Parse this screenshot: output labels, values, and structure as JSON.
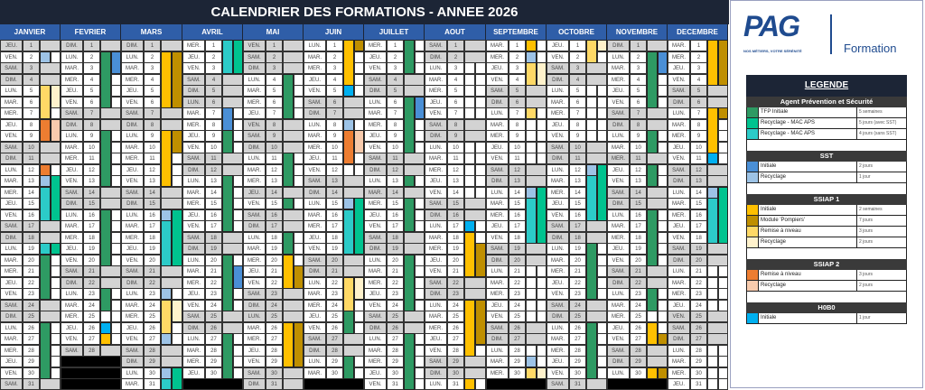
{
  "title": "CALENDRIER DES FORMATIONS - ANNEE 2026",
  "weekday_labels": [
    "LUN.",
    "MAR.",
    "MER.",
    "JEU.",
    "VEN.",
    "SAM.",
    "DIM."
  ],
  "months": [
    {
      "name": "JANVIER",
      "start": 3,
      "days": 31,
      "holidays": [
        1
      ],
      "events": [
        [
          0,
          2,
          2,
          "sst_rec"
        ],
        [
          0,
          5,
          7,
          "s1_rn"
        ],
        [
          0,
          8,
          9,
          "s2_rn"
        ],
        [
          0,
          12,
          12,
          "s2_rn"
        ],
        [
          0,
          13,
          13,
          "sst_rec"
        ],
        [
          0,
          14,
          16,
          "mac4"
        ],
        [
          0,
          19,
          19,
          "mac4"
        ],
        [
          0,
          20,
          23,
          "tfp"
        ],
        [
          0,
          26,
          30,
          "tfp"
        ],
        [
          1,
          5,
          6,
          "s1_rec"
        ],
        [
          1,
          8,
          9,
          "s2_rec"
        ],
        [
          1,
          13,
          16,
          "mac5"
        ],
        [
          1,
          19,
          19,
          "mac5"
        ]
      ]
    },
    {
      "name": "FEVRIER",
      "start": 6,
      "days": 28,
      "holidays": [],
      "events": [
        [
          0,
          2,
          6,
          "tfp"
        ],
        [
          0,
          9,
          13,
          "tfp"
        ],
        [
          0,
          16,
          20,
          "tfp"
        ],
        [
          0,
          23,
          24,
          "tfp"
        ],
        [
          0,
          26,
          26,
          "hobo"
        ],
        [
          0,
          27,
          27,
          "s1_init"
        ],
        [
          1,
          2,
          3,
          "sst_init"
        ]
      ]
    },
    {
      "name": "MARS",
      "start": 6,
      "days": 31,
      "holidays": [],
      "events": [
        [
          0,
          2,
          6,
          "s1_init"
        ],
        [
          0,
          9,
          13,
          "s1_init"
        ],
        [
          0,
          16,
          16,
          "sst_rec"
        ],
        [
          0,
          17,
          20,
          "mac4"
        ],
        [
          0,
          23,
          23,
          "sst_rec"
        ],
        [
          0,
          24,
          26,
          "s1_rn"
        ],
        [
          0,
          27,
          27,
          "sst_rec"
        ],
        [
          0,
          30,
          30,
          "sst_rec"
        ],
        [
          0,
          31,
          31,
          "mac4"
        ],
        [
          1,
          2,
          6,
          "pomp"
        ],
        [
          1,
          9,
          10,
          "pomp"
        ],
        [
          1,
          16,
          20,
          "mac5"
        ],
        [
          1,
          24,
          25,
          "s1_rec"
        ],
        [
          1,
          30,
          31,
          "mac5"
        ]
      ]
    },
    {
      "name": "AVRIL",
      "start": 2,
      "days": 30,
      "holidays": [
        6
      ],
      "events": [
        [
          0,
          1,
          3,
          "mac4"
        ],
        [
          0,
          7,
          8,
          "sst_init"
        ],
        [
          0,
          9,
          10,
          "tfp"
        ],
        [
          0,
          13,
          17,
          "tfp"
        ],
        [
          0,
          20,
          24,
          "tfp"
        ],
        [
          0,
          27,
          30,
          "tfp"
        ],
        [
          1,
          1,
          3,
          "mac5"
        ],
        [
          1,
          21,
          22,
          "sst_init"
        ]
      ]
    },
    {
      "name": "MAI",
      "start": 4,
      "days": 31,
      "holidays": [
        1,
        8,
        14,
        25
      ],
      "events": [
        [
          0,
          4,
          7,
          "tfp"
        ],
        [
          0,
          11,
          13,
          "tfp"
        ],
        [
          0,
          15,
          15,
          "tfp"
        ],
        [
          0,
          18,
          19,
          "tfp"
        ],
        [
          0,
          20,
          22,
          "s1_init"
        ],
        [
          0,
          26,
          29,
          "s1_init"
        ],
        [
          1,
          21,
          22,
          "pomp"
        ],
        [
          1,
          26,
          29,
          "pomp"
        ]
      ]
    },
    {
      "name": "JUIN",
      "start": 0,
      "days": 30,
      "holidays": [],
      "events": [
        [
          0,
          1,
          4,
          "s1_init"
        ],
        [
          0,
          5,
          5,
          "hobo"
        ],
        [
          0,
          8,
          8,
          "sst_rec"
        ],
        [
          0,
          9,
          11,
          "s2_rn"
        ],
        [
          0,
          15,
          15,
          "sst_rec"
        ],
        [
          0,
          16,
          19,
          "mac4"
        ],
        [
          0,
          22,
          24,
          "s1_rn"
        ],
        [
          0,
          25,
          26,
          "tfp"
        ],
        [
          0,
          29,
          30,
          "tfp"
        ],
        [
          1,
          1,
          1,
          "pomp"
        ],
        [
          1,
          9,
          10,
          "s2_rec"
        ],
        [
          1,
          15,
          19,
          "mac5"
        ],
        [
          1,
          22,
          23,
          "s1_rec"
        ]
      ]
    },
    {
      "name": "JUILLET",
      "start": 2,
      "days": 31,
      "holidays": [
        14
      ],
      "events": [
        [
          0,
          1,
          3,
          "tfp"
        ],
        [
          0,
          6,
          10,
          "tfp"
        ],
        [
          0,
          13,
          13,
          "tfp"
        ],
        [
          0,
          15,
          17,
          "tfp"
        ],
        [
          0,
          20,
          24,
          "tfp"
        ],
        [
          0,
          27,
          31,
          "tfp"
        ],
        [
          1,
          6,
          7,
          "sst_init"
        ]
      ]
    },
    {
      "name": "AOUT",
      "start": 5,
      "days": 31,
      "holidays": [
        15
      ],
      "events": [
        [
          0,
          17,
          17,
          "hobo"
        ],
        [
          0,
          18,
          21,
          "s1_init"
        ],
        [
          0,
          24,
          28,
          "s1_init"
        ],
        [
          0,
          31,
          31,
          "s1_init"
        ],
        [
          1,
          19,
          21,
          "pomp"
        ],
        [
          1,
          24,
          27,
          "pomp"
        ]
      ]
    },
    {
      "name": "SEPTEMBRE",
      "start": 1,
      "days": 30,
      "holidays": [],
      "events": [
        [
          0,
          1,
          1,
          "s1_init"
        ],
        [
          0,
          2,
          2,
          "sst_rec"
        ],
        [
          0,
          3,
          4,
          "s1_rn"
        ],
        [
          0,
          7,
          7,
          "s1_rn"
        ],
        [
          0,
          14,
          14,
          "sst_rec"
        ],
        [
          0,
          15,
          18,
          "mac4"
        ],
        [
          0,
          29,
          29,
          "sst_rec"
        ],
        [
          0,
          30,
          30,
          "s1_rn"
        ],
        [
          1,
          3,
          4,
          "s1_rec"
        ],
        [
          1,
          14,
          18,
          "mac5"
        ],
        [
          1,
          30,
          30,
          "s1_rec"
        ]
      ]
    },
    {
      "name": "OCTOBRE",
      "start": 3,
      "days": 31,
      "holidays": [],
      "events": [
        [
          0,
          1,
          2,
          "s1_rn"
        ],
        [
          0,
          12,
          12,
          "sst_rec"
        ],
        [
          0,
          13,
          16,
          "mac4"
        ],
        [
          0,
          19,
          23,
          "tfp"
        ],
        [
          0,
          26,
          30,
          "tfp"
        ],
        [
          1,
          1,
          1,
          "s1_rec"
        ],
        [
          1,
          12,
          16,
          "mac5"
        ]
      ]
    },
    {
      "name": "NOVEMBRE",
      "start": 6,
      "days": 30,
      "holidays": [
        1,
        11
      ],
      "events": [
        [
          0,
          2,
          6,
          "tfp"
        ],
        [
          0,
          9,
          10,
          "tfp"
        ],
        [
          0,
          12,
          13,
          "tfp"
        ],
        [
          0,
          16,
          20,
          "tfp"
        ],
        [
          0,
          23,
          24,
          "tfp"
        ],
        [
          0,
          26,
          27,
          "s1_init"
        ],
        [
          0,
          30,
          30,
          "s1_init"
        ],
        [
          1,
          2,
          3,
          "sst_init"
        ],
        [
          1,
          27,
          27,
          "pomp"
        ],
        [
          1,
          30,
          30,
          "pomp"
        ]
      ]
    },
    {
      "name": "DECEMBRE",
      "start": 1,
      "days": 31,
      "holidays": [
        25
      ],
      "events": [
        [
          0,
          1,
          4,
          "s1_init"
        ],
        [
          0,
          7,
          10,
          "s1_init"
        ],
        [
          0,
          11,
          11,
          "hobo"
        ],
        [
          0,
          14,
          14,
          "sst_rec"
        ],
        [
          0,
          15,
          18,
          "mac4"
        ],
        [
          1,
          1,
          4,
          "pomp"
        ],
        [
          1,
          7,
          7,
          "pomp"
        ],
        [
          1,
          14,
          18,
          "mac5"
        ]
      ]
    }
  ],
  "colors": {
    "tfp": "#2e9a63",
    "mac5": "#00c38f",
    "mac4": "#2ccbc8",
    "sst_init": "#4a8fd6",
    "sst_rec": "#9dc3e6",
    "s1_init": "#ffc000",
    "pomp": "#bf8f00",
    "s1_rn": "#ffd966",
    "s1_rec": "#fff2cc",
    "s2_rn": "#ed7d31",
    "s2_rec": "#f8cbad",
    "hobo": "#00b0f0",
    "weekend": "#d3d3d3",
    "header": "#2f5ea8",
    "title_bg": "#1c2536"
  },
  "logo": {
    "brand": "PAG",
    "tagline": "NOS MÉTIERS, VOTRE SÉRÉNITÉ",
    "product": "Formation"
  },
  "legend": {
    "title": "LEGENDE",
    "sections": [
      {
        "title": "Agent Prévention et Sécurité",
        "items": [
          {
            "key": "tfp",
            "label": "TFP Initiale",
            "duration": "5 semaines"
          },
          {
            "key": "mac5",
            "label": "Recyclage - MAC APS",
            "duration": "5 jours (avec SST)"
          },
          {
            "key": "mac4",
            "label": "Recyclage - MAC APS",
            "duration": "4 jours (sans SST)"
          }
        ]
      },
      {
        "title": "SST",
        "items": [
          {
            "key": "sst_init",
            "label": "Initiale",
            "duration": "2 jours"
          },
          {
            "key": "sst_rec",
            "label": "Recyclage",
            "duration": "1 jour"
          }
        ]
      },
      {
        "title": "SSIAP 1",
        "items": [
          {
            "key": "s1_init",
            "label": "Initiale",
            "duration": "2 semaines"
          },
          {
            "key": "pomp",
            "label": "Module 'Pompiers'",
            "duration": "7 jours"
          },
          {
            "key": "s1_rn",
            "label": "Remise à niveau",
            "duration": "3 jours"
          },
          {
            "key": "s1_rec",
            "label": "Recyclage",
            "duration": "2 jours"
          }
        ]
      },
      {
        "title": "SSIAP 2",
        "items": [
          {
            "key": "s2_rn",
            "label": "Remise à niveau",
            "duration": "3 jours"
          },
          {
            "key": "s2_rec",
            "label": "Recyclage",
            "duration": "2 jours"
          }
        ]
      },
      {
        "title": "H0B0",
        "items": [
          {
            "key": "hobo",
            "label": "Initiale",
            "duration": "1 jour"
          }
        ]
      }
    ]
  }
}
